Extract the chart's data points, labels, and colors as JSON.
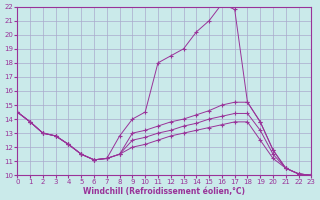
{
  "xlabel": "Windchill (Refroidissement éolien,°C)",
  "xlim": [
    0,
    23
  ],
  "ylim": [
    10,
    22
  ],
  "yticks": [
    10,
    11,
    12,
    13,
    14,
    15,
    16,
    17,
    18,
    19,
    20,
    21,
    22
  ],
  "xticks": [
    0,
    1,
    2,
    3,
    4,
    5,
    6,
    7,
    8,
    9,
    10,
    11,
    12,
    13,
    14,
    15,
    16,
    17,
    18,
    19,
    20,
    21,
    22,
    23
  ],
  "bg_color": "#caeaea",
  "grid_color": "#aaaacc",
  "line_color": "#993399",
  "line1_x": [
    0,
    1,
    2,
    3,
    4,
    5,
    6,
    7,
    8,
    9,
    10,
    11,
    12,
    13,
    14,
    15,
    16,
    17,
    18,
    19,
    20,
    21,
    22,
    23
  ],
  "line1_y": [
    14.5,
    13.8,
    13.0,
    12.8,
    12.2,
    11.5,
    11.1,
    11.2,
    12.8,
    14.0,
    14.5,
    18.0,
    18.5,
    19.0,
    20.2,
    21.0,
    22.2,
    21.8,
    15.2,
    13.8,
    11.8,
    10.5,
    10.1,
    10.0
  ],
  "line2_x": [
    0,
    1,
    2,
    3,
    4,
    5,
    6,
    7,
    8,
    9,
    10,
    11,
    12,
    13,
    14,
    15,
    16,
    17,
    18,
    19,
    20,
    21,
    22,
    23
  ],
  "line2_y": [
    14.5,
    13.8,
    13.0,
    12.8,
    12.2,
    11.5,
    11.1,
    11.2,
    11.5,
    13.0,
    13.2,
    13.5,
    13.8,
    14.0,
    14.3,
    14.6,
    15.0,
    15.2,
    15.2,
    13.8,
    11.8,
    10.5,
    10.1,
    10.0
  ],
  "line3_x": [
    0,
    1,
    2,
    3,
    4,
    5,
    6,
    7,
    8,
    9,
    10,
    11,
    12,
    13,
    14,
    15,
    16,
    17,
    18,
    19,
    20,
    21,
    22,
    23
  ],
  "line3_y": [
    14.5,
    13.8,
    13.0,
    12.8,
    12.2,
    11.5,
    11.1,
    11.2,
    11.5,
    12.5,
    12.7,
    13.0,
    13.2,
    13.5,
    13.7,
    14.0,
    14.2,
    14.4,
    14.4,
    13.2,
    11.5,
    10.5,
    10.1,
    10.0
  ],
  "line4_x": [
    0,
    1,
    2,
    3,
    4,
    5,
    6,
    7,
    8,
    9,
    10,
    11,
    12,
    13,
    14,
    15,
    16,
    17,
    18,
    19,
    20,
    21,
    22,
    23
  ],
  "line4_y": [
    14.5,
    13.8,
    13.0,
    12.8,
    12.2,
    11.5,
    11.1,
    11.2,
    11.5,
    12.0,
    12.2,
    12.5,
    12.8,
    13.0,
    13.2,
    13.4,
    13.6,
    13.8,
    13.8,
    12.5,
    11.2,
    10.5,
    10.1,
    10.0
  ]
}
